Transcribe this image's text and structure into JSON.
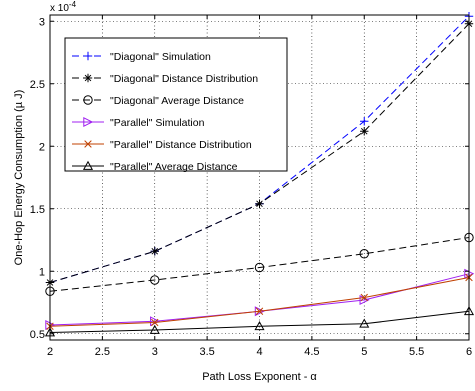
{
  "chart_data": {
    "type": "line",
    "title": "",
    "xlabel": "Path Loss Exponent - α",
    "ylabel": "One-Hop Energy Consumption (µ J)",
    "y_multiplier_label": "x 10",
    "y_multiplier_exponent": "-4",
    "xlim": [
      2,
      6
    ],
    "ylim": [
      0.45,
      3.05
    ],
    "x": [
      2,
      3,
      4,
      5,
      6
    ],
    "xticks": [
      2,
      2.5,
      3,
      3.5,
      4,
      4.5,
      5,
      5.5,
      6
    ],
    "xtick_labels": [
      "2",
      "2.5",
      "3",
      "3.5",
      "4",
      "4.5",
      "5",
      "5.5",
      "6"
    ],
    "yticks": [
      0.5,
      1,
      1.5,
      2,
      2.5,
      3
    ],
    "ytick_labels": [
      "0.5",
      "1",
      "1.5",
      "2",
      "2.5",
      "3"
    ],
    "grid": true,
    "legend_position": "top-left",
    "series": [
      {
        "name": "\"Diagonal\" Simulation",
        "color": "#0000ff",
        "dash": "dashed",
        "marker": "plus",
        "values": [
          0.91,
          1.16,
          1.54,
          2.2,
          3.04
        ]
      },
      {
        "name": "\"Diagonal\" Distance Distribution",
        "color": "#000000",
        "dash": "dashed",
        "marker": "asterisk",
        "values": [
          0.91,
          1.16,
          1.54,
          2.12,
          2.98
        ]
      },
      {
        "name": "\"Diagonal\" Average Distance",
        "color": "#000000",
        "dash": "dashed",
        "marker": "circle",
        "values": [
          0.84,
          0.93,
          1.03,
          1.14,
          1.27
        ]
      },
      {
        "name": "\"Parallel\" Simulation",
        "color": "#a020f0",
        "dash": "solid",
        "marker": "triangle-right",
        "values": [
          0.57,
          0.6,
          0.68,
          0.77,
          0.98
        ]
      },
      {
        "name": "\"Parallel\" Distance Distribution",
        "color": "#c04000",
        "dash": "solid",
        "marker": "x",
        "values": [
          0.56,
          0.59,
          0.68,
          0.79,
          0.95
        ]
      },
      {
        "name": "\"Parallel\" Average Distance",
        "color": "#000000",
        "dash": "solid",
        "marker": "triangle-up",
        "values": [
          0.51,
          0.53,
          0.56,
          0.58,
          0.68
        ]
      }
    ]
  }
}
